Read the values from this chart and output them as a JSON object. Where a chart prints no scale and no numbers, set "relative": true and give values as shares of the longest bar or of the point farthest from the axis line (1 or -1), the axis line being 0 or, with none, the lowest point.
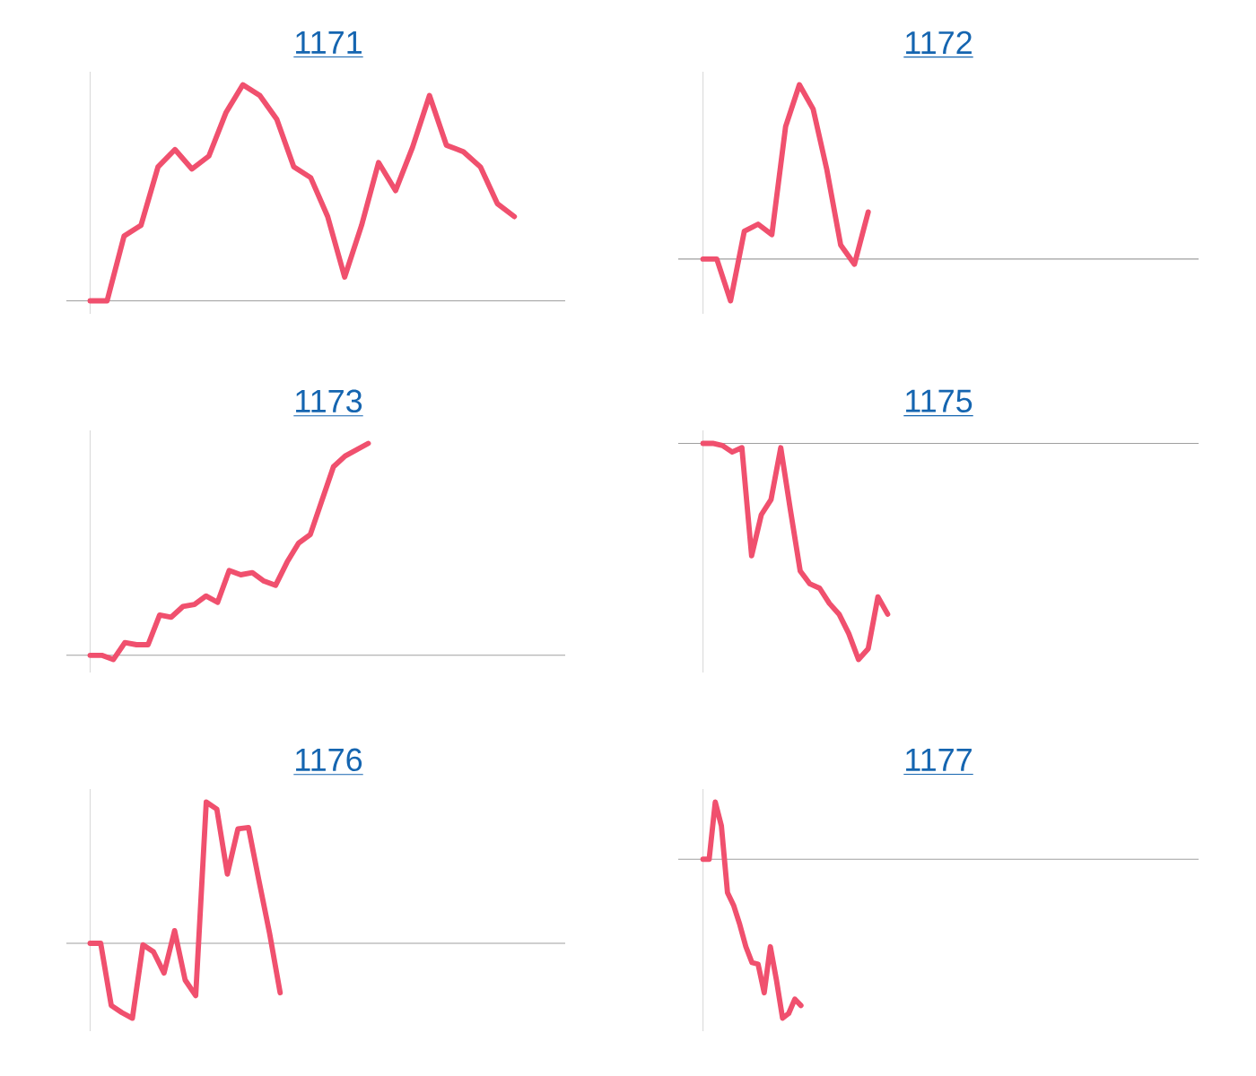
{
  "chart_data": [
    {
      "type": "line",
      "title": "1171",
      "relative": true,
      "color": "#f0506e",
      "categories": [
        null,
        null,
        null,
        null,
        null,
        null,
        null,
        null,
        null,
        null,
        null,
        null,
        null,
        null,
        null,
        null,
        null,
        null,
        null,
        null,
        null,
        null,
        null,
        null,
        null,
        null,
        null,
        null,
        null
      ],
      "values": [
        0,
        0,
        0.3,
        0.35,
        0.62,
        0.7,
        0.61,
        0.67,
        0.87,
        1.0,
        0.95,
        0.84,
        0.62,
        0.57,
        0.39,
        0.11,
        0.35,
        0.64,
        0.51,
        0.71,
        0.95,
        0.72,
        0.69,
        0.62,
        0.45,
        0.39,
        null,
        null,
        null
      ]
    },
    {
      "type": "line",
      "title": "1172",
      "relative": true,
      "color": "#f0506e",
      "categories": [
        null,
        null,
        null,
        null,
        null,
        null,
        null,
        null,
        null,
        null,
        null,
        null,
        null,
        null,
        null,
        null,
        null,
        null,
        null,
        null,
        null,
        null,
        null,
        null,
        null,
        null,
        null,
        null,
        null,
        null,
        null,
        null,
        null,
        null,
        null,
        null,
        null
      ],
      "values": [
        0,
        0,
        -0.24,
        0.16,
        0.2,
        0.14,
        0.76,
        1.0,
        0.86,
        0.51,
        0.08,
        -0.03,
        0.27,
        null,
        null,
        null,
        null,
        null,
        null,
        null,
        null,
        null,
        null,
        null,
        null,
        null,
        null,
        null,
        null,
        null,
        null,
        null,
        null,
        null,
        null,
        null,
        null
      ]
    },
    {
      "type": "line",
      "title": "1173",
      "relative": true,
      "color": "#f0506e",
      "categories": [
        null,
        null,
        null,
        null,
        null,
        null,
        null,
        null,
        null,
        null,
        null,
        null,
        null,
        null,
        null,
        null,
        null,
        null,
        null,
        null,
        null,
        null,
        null,
        null,
        null,
        null,
        null,
        null,
        null,
        null,
        null,
        null,
        null,
        null,
        null,
        null,
        null,
        null,
        null,
        null,
        null,
        null
      ],
      "values": [
        0,
        0,
        -0.02,
        0.06,
        0.05,
        0.05,
        0.19,
        0.18,
        0.23,
        0.24,
        0.28,
        0.25,
        0.4,
        0.38,
        0.39,
        0.35,
        0.33,
        0.44,
        0.53,
        0.57,
        0.73,
        0.89,
        0.94,
        0.97,
        1.0,
        null,
        null,
        null,
        null,
        null,
        null,
        null,
        null,
        null,
        null,
        null,
        null,
        null,
        null,
        null,
        null,
        null
      ]
    },
    {
      "type": "line",
      "title": "1175",
      "relative": true,
      "color": "#f0506e",
      "categories": [
        null,
        null,
        null,
        null,
        null,
        null,
        null,
        null,
        null,
        null,
        null,
        null,
        null,
        null,
        null,
        null,
        null,
        null,
        null,
        null,
        null,
        null,
        null,
        null,
        null,
        null,
        null,
        null,
        null,
        null,
        null,
        null,
        null,
        null,
        null,
        null,
        null,
        null,
        null,
        null,
        null,
        null,
        null,
        null,
        null,
        null,
        null,
        null,
        null,
        null,
        null,
        null
      ],
      "values": [
        0,
        0,
        -0.01,
        -0.04,
        -0.02,
        -0.52,
        -0.33,
        -0.26,
        -0.02,
        -0.31,
        -0.59,
        -0.65,
        -0.67,
        -0.74,
        -0.79,
        -0.88,
        -1.0,
        -0.95,
        -0.71,
        -0.79,
        null,
        null,
        null,
        null,
        null,
        null,
        null,
        null,
        null,
        null,
        null,
        null,
        null,
        null,
        null,
        null,
        null,
        null,
        null,
        null,
        null,
        null,
        null,
        null,
        null,
        null,
        null,
        null,
        null,
        null,
        null,
        null
      ]
    },
    {
      "type": "line",
      "title": "1176",
      "relative": true,
      "color": "#f0506e",
      "categories": [
        null,
        null,
        null,
        null,
        null,
        null,
        null,
        null,
        null,
        null,
        null,
        null,
        null,
        null,
        null,
        null,
        null,
        null,
        null,
        null,
        null,
        null,
        null,
        null,
        null,
        null,
        null,
        null,
        null,
        null,
        null,
        null,
        null,
        null,
        null,
        null,
        null,
        null,
        null,
        null,
        null,
        null,
        null,
        null,
        null,
        null
      ],
      "values": [
        0,
        0,
        -0.44,
        -0.49,
        -0.53,
        -0.01,
        -0.06,
        -0.21,
        0.09,
        -0.26,
        -0.37,
        1.0,
        0.95,
        0.49,
        0.81,
        0.82,
        0.44,
        0.07,
        -0.35,
        null,
        null,
        null,
        null,
        null,
        null,
        null,
        null,
        null,
        null,
        null,
        null,
        null,
        null,
        null,
        null,
        null,
        null,
        null,
        null,
        null,
        null,
        null,
        null,
        null,
        null,
        null
      ]
    },
    {
      "type": "line",
      "title": "1177",
      "relative": true,
      "color": "#f0506e",
      "categories": [
        null,
        null,
        null,
        null,
        null,
        null,
        null,
        null,
        null,
        null,
        null,
        null,
        null,
        null,
        null,
        null,
        null,
        null,
        null,
        null,
        null,
        null,
        null,
        null,
        null,
        null,
        null,
        null,
        null,
        null,
        null,
        null,
        null,
        null,
        null,
        null,
        null,
        null,
        null,
        null,
        null,
        null,
        null,
        null,
        null,
        null,
        null,
        null,
        null,
        null,
        null,
        null,
        null,
        null,
        null,
        null,
        null,
        null,
        null,
        null,
        null,
        null,
        null,
        null,
        null,
        null,
        null,
        null,
        null,
        null,
        null,
        null,
        null,
        null,
        null,
        null,
        null,
        null,
        null,
        null,
        null,
        null
      ],
      "values": [
        0,
        0,
        0.36,
        0.21,
        -0.21,
        -0.29,
        -0.41,
        -0.55,
        -0.65,
        -0.66,
        -0.84,
        -0.55,
        -0.76,
        -1.0,
        -0.97,
        -0.88,
        -0.92,
        null,
        null,
        null,
        null,
        null,
        null,
        null,
        null,
        null,
        null,
        null,
        null,
        null,
        null,
        null,
        null,
        null,
        null,
        null,
        null,
        null,
        null,
        null,
        null,
        null,
        null,
        null,
        null,
        null,
        null,
        null,
        null,
        null,
        null,
        null,
        null,
        null,
        null,
        null,
        null,
        null,
        null,
        null,
        null,
        null,
        null,
        null,
        null,
        null,
        null,
        null,
        null,
        null,
        null,
        null,
        null,
        null,
        null,
        null,
        null,
        null,
        null,
        null,
        null,
        null
      ]
    }
  ]
}
